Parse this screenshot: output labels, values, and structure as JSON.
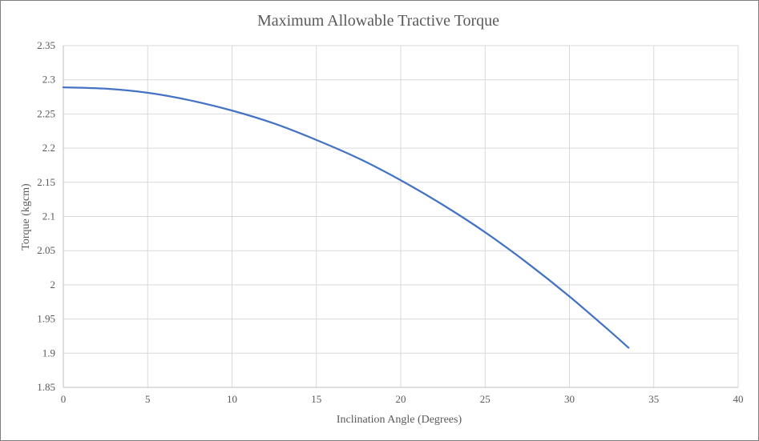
{
  "chart_data": {
    "type": "line",
    "title": "Maximum Allowable  Tractive Torque",
    "xlabel": "Inclination Angle (Degrees)",
    "ylabel": "Torque (kgcm)",
    "xlim": [
      0,
      40
    ],
    "ylim": [
      1.85,
      2.35
    ],
    "x_ticks": [
      "0",
      "5",
      "10",
      "15",
      "20",
      "25",
      "30",
      "35",
      "40"
    ],
    "y_ticks": [
      "1.85",
      "1.9",
      "1.95",
      "2",
      "2.05",
      "2.1",
      "2.15",
      "2.2",
      "2.25",
      "2.3",
      "2.35"
    ],
    "grid": true,
    "legend": "none",
    "series": [
      {
        "color": "#4472c4",
        "x": [
          0,
          2.5,
          5,
          7.5,
          10,
          12.5,
          15,
          17.5,
          20,
          22.5,
          25,
          27.5,
          30,
          32.5,
          33.5
        ],
        "y": [
          2.289,
          2.287,
          2.281,
          2.27,
          2.255,
          2.236,
          2.212,
          2.185,
          2.153,
          2.117,
          2.077,
          2.032,
          1.983,
          1.93,
          1.908
        ]
      }
    ]
  }
}
